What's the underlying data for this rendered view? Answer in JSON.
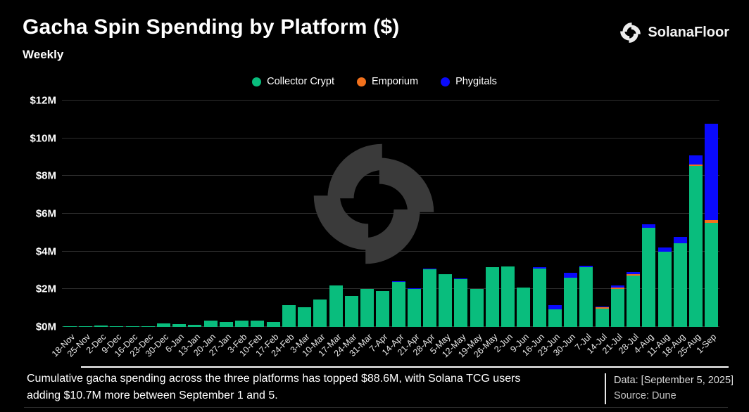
{
  "header": {
    "title": "Gacha Spin Spending by Platform ($)",
    "subtitle": "Weekly",
    "brand_name": "SolanaFloor"
  },
  "legend": [
    {
      "label": "Collector Crypt",
      "color": "#09bd7d"
    },
    {
      "label": "Emporium",
      "color": "#f2711c"
    },
    {
      "label": "Phygitals",
      "color": "#0a0afc"
    }
  ],
  "icons": {
    "brand_logo": "solanafloor-swirl-icon",
    "watermark": "solanafloor-swirl-watermark"
  },
  "chart_data": {
    "type": "bar",
    "stacked": true,
    "title": "Gacha Spin Spending by Platform ($)",
    "subtitle": "Weekly",
    "xlabel": "",
    "ylabel": "",
    "unit": "USD millions",
    "ylim": [
      0,
      12
    ],
    "y_ticks": [
      "$0M",
      "$2M",
      "$4M",
      "$6M",
      "$8M",
      "$10M",
      "$12M"
    ],
    "grid": true,
    "legend_position": "top",
    "categories": [
      "18-Nov",
      "25-Nov",
      "2-Dec",
      "9-Dec",
      "16-Dec",
      "23-Dec",
      "30-Dec",
      "6-Jan",
      "13-Jan",
      "20-Jan",
      "27-Jan",
      "3-Feb",
      "10-Feb",
      "17-Feb",
      "24-Feb",
      "3-Mar",
      "10-Mar",
      "17-Mar",
      "24-Mar",
      "31-Mar",
      "7-Apr",
      "14-Apr",
      "21-Apr",
      "28-Apr",
      "5-May",
      "12-May",
      "19-May",
      "26-May",
      "2-Jun",
      "9-Jun",
      "16-Jun",
      "23-Jun",
      "30-Jun",
      "7-Jul",
      "14-Jul",
      "21-Jul",
      "28-Jul",
      "4-Aug",
      "11-Aug",
      "18-Aug",
      "25-Aug",
      "1-Sep"
    ],
    "series": [
      {
        "name": "Collector Crypt",
        "color": "#09bd7d",
        "values": [
          0.05,
          0.05,
          0.09,
          0.02,
          0.02,
          0.05,
          0.18,
          0.16,
          0.13,
          0.35,
          0.25,
          0.32,
          0.35,
          0.27,
          1.15,
          1.05,
          1.45,
          2.2,
          1.65,
          2.0,
          1.9,
          2.4,
          2.0,
          3.05,
          2.8,
          2.55,
          2.0,
          3.17,
          3.2,
          2.1,
          3.08,
          0.95,
          2.62,
          3.15,
          0.96,
          2.03,
          2.72,
          5.25,
          4.0,
          4.45,
          8.55,
          5.5
        ]
      },
      {
        "name": "Emporium",
        "color": "#f2711c",
        "values": [
          0,
          0,
          0,
          0,
          0,
          0,
          0,
          0,
          0,
          0,
          0,
          0,
          0,
          0,
          0,
          0,
          0,
          0,
          0,
          0,
          0,
          0,
          0,
          0,
          0,
          0,
          0,
          0,
          0,
          0,
          0,
          0,
          0,
          0,
          0.08,
          0.07,
          0.08,
          0,
          0,
          0,
          0.08,
          0.15
        ]
      },
      {
        "name": "Phygitals",
        "color": "#0a0afc",
        "values": [
          0,
          0,
          0,
          0,
          0,
          0,
          0,
          0,
          0,
          0,
          0,
          0,
          0,
          0,
          0,
          0,
          0,
          0,
          0,
          0,
          0,
          0.03,
          0.05,
          0.03,
          0,
          0.03,
          0,
          0,
          0,
          0,
          0.06,
          0.22,
          0.26,
          0.07,
          0.05,
          0.1,
          0.11,
          0.2,
          0.22,
          0.35,
          0.5,
          5.1
        ]
      }
    ]
  },
  "footer": {
    "note_line1": "Cumulative gacha spending across the three platforms has topped $88.6M, with Solana TCG users",
    "note_line2": "adding $10.7M more between September 1 and 5.",
    "data_label": "Data: [September 5, 2025]",
    "source_label": "Source: Dune"
  }
}
